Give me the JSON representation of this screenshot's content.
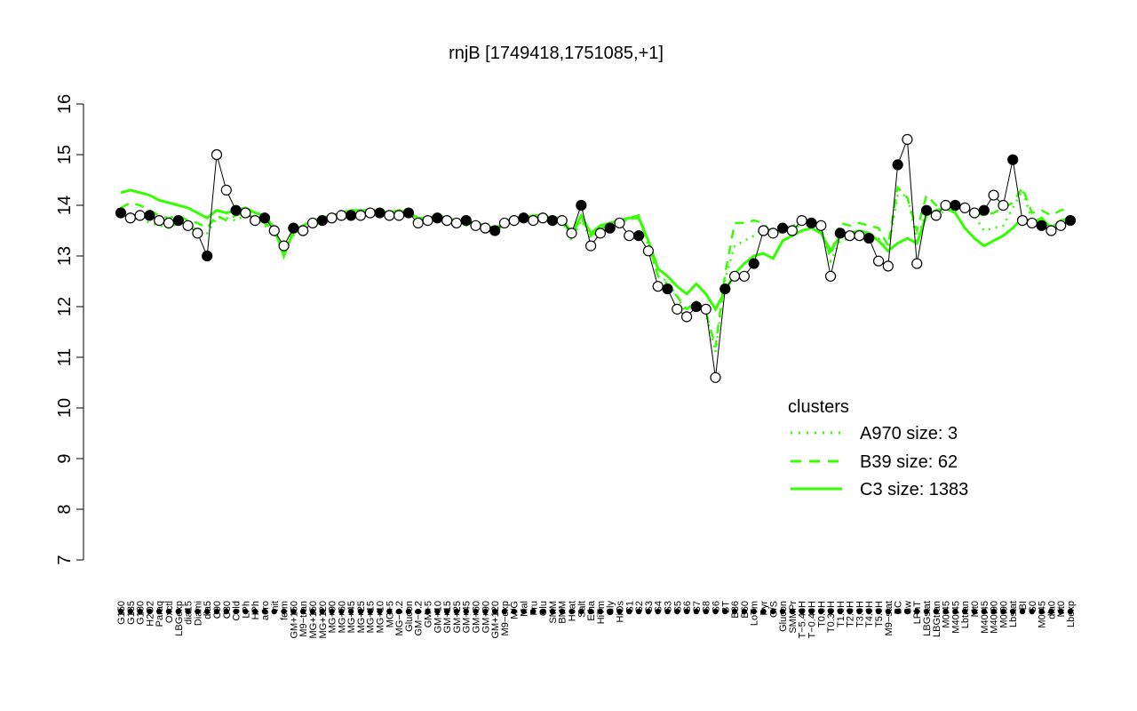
{
  "chart_data": {
    "type": "line",
    "title": "rnjB [1749418,1751085,+1]",
    "xlabel": "",
    "ylabel": "",
    "ylim": [
      7,
      16
    ],
    "y_ticks": [
      7,
      8,
      9,
      10,
      11,
      12,
      13,
      14,
      15,
      16
    ],
    "x_range": [
      1,
      100
    ],
    "grid": false,
    "x_ticks": [
      {
        "x": 1,
        "label": "G150"
      },
      {
        "x": 2,
        "label": "G135"
      },
      {
        "x": 3,
        "label": "G180"
      },
      {
        "x": 4,
        "label": "H2O2"
      },
      {
        "x": 5,
        "label": "Paraq"
      },
      {
        "x": 6,
        "label": "Oxctl"
      },
      {
        "x": 7,
        "label": "LBGexp"
      },
      {
        "x": 8,
        "label": "dia15"
      },
      {
        "x": 9,
        "label": "Diami"
      },
      {
        "x": 10,
        "label": "dia5"
      },
      {
        "x": 11,
        "label": "C90"
      },
      {
        "x": 12,
        "label": "C30"
      },
      {
        "x": 13,
        "label": "Cold"
      },
      {
        "x": 14,
        "label": "LPh"
      },
      {
        "x": 15,
        "label": "HPh"
      },
      {
        "x": 16,
        "label": "aero"
      },
      {
        "x": 17,
        "label": "nit"
      },
      {
        "x": 18,
        "label": "ferm"
      },
      {
        "x": 19,
        "label": "GM+150"
      },
      {
        "x": 20,
        "label": "M9−tran"
      },
      {
        "x": 21,
        "label": "MG+150"
      },
      {
        "x": 22,
        "label": "MG+120"
      },
      {
        "x": 23,
        "label": "MG+90"
      },
      {
        "x": 24,
        "label": "MG+60"
      },
      {
        "x": 25,
        "label": "MG+45"
      },
      {
        "x": 26,
        "label": "MG+25"
      },
      {
        "x": 27,
        "label": "MG+15"
      },
      {
        "x": 28,
        "label": "MG+10"
      },
      {
        "x": 29,
        "label": "MG+5"
      },
      {
        "x": 30,
        "label": "MG−0.2"
      },
      {
        "x": 31,
        "label": "Glucon"
      },
      {
        "x": 32,
        "label": "GM−0.2"
      },
      {
        "x": 33,
        "label": "GM+5"
      },
      {
        "x": 34,
        "label": "GM+10"
      },
      {
        "x": 35,
        "label": "GM+15"
      },
      {
        "x": 36,
        "label": "GM+25"
      },
      {
        "x": 37,
        "label": "GM+45"
      },
      {
        "x": 38,
        "label": "GM+60"
      },
      {
        "x": 39,
        "label": "GM+90"
      },
      {
        "x": 40,
        "label": "GM+120"
      },
      {
        "x": 41,
        "label": "M9−exp"
      },
      {
        "x": 42,
        "label": "M/G"
      },
      {
        "x": 43,
        "label": "Mal"
      },
      {
        "x": 44,
        "label": "Fru"
      },
      {
        "x": 45,
        "label": "Glu"
      },
      {
        "x": 46,
        "label": "SMM"
      },
      {
        "x": 47,
        "label": "BMM"
      },
      {
        "x": 48,
        "label": "Heat"
      },
      {
        "x": 49,
        "label": "Salt"
      },
      {
        "x": 50,
        "label": "Etha"
      },
      {
        "x": 51,
        "label": "HiTm"
      },
      {
        "x": 52,
        "label": "Gly"
      },
      {
        "x": 53,
        "label": "HiOs"
      },
      {
        "x": 54,
        "label": "S1"
      },
      {
        "x": 55,
        "label": "S2"
      },
      {
        "x": 56,
        "label": "S3"
      },
      {
        "x": 57,
        "label": "S4"
      },
      {
        "x": 58,
        "label": "S3"
      },
      {
        "x": 59,
        "label": "S5"
      },
      {
        "x": 60,
        "label": "S6"
      },
      {
        "x": 61,
        "label": "S7"
      },
      {
        "x": 62,
        "label": "S8"
      },
      {
        "x": 63,
        "label": "S6"
      },
      {
        "x": 64,
        "label": "BT"
      },
      {
        "x": 65,
        "label": "B36"
      },
      {
        "x": 66,
        "label": "B60"
      },
      {
        "x": 67,
        "label": "LoTm"
      },
      {
        "x": 68,
        "label": "Pyr"
      },
      {
        "x": 69,
        "label": "G/S"
      },
      {
        "x": 70,
        "label": "Glucon"
      },
      {
        "x": 71,
        "label": "SMMPr"
      },
      {
        "x": 72,
        "label": "T−5.40H"
      },
      {
        "x": 73,
        "label": "T−0.40H"
      },
      {
        "x": 74,
        "label": "T0.0H"
      },
      {
        "x": 75,
        "label": "T0.30H"
      },
      {
        "x": 76,
        "label": "T1.0H"
      },
      {
        "x": 77,
        "label": "T2.0H"
      },
      {
        "x": 78,
        "label": "T3.0H"
      },
      {
        "x": 79,
        "label": "T4.0H"
      },
      {
        "x": 80,
        "label": "T5.0H"
      },
      {
        "x": 81,
        "label": "M9−stat"
      },
      {
        "x": 82,
        "label": "BC"
      },
      {
        "x": 83,
        "label": "Sw"
      },
      {
        "x": 84,
        "label": "LPhT"
      },
      {
        "x": 85,
        "label": "LBGstat"
      },
      {
        "x": 86,
        "label": "LBGtran"
      },
      {
        "x": 87,
        "label": "M0t45"
      },
      {
        "x": 88,
        "label": "M40t45"
      },
      {
        "x": 89,
        "label": "Lbtran"
      },
      {
        "x": 90,
        "label": "Mt0"
      },
      {
        "x": 91,
        "label": "M40t45"
      },
      {
        "x": 92,
        "label": "M40t90"
      },
      {
        "x": 93,
        "label": "M0t90"
      },
      {
        "x": 94,
        "label": "Lbstat"
      },
      {
        "x": 95,
        "label": "BI"
      },
      {
        "x": 96,
        "label": "S0"
      },
      {
        "x": 97,
        "label": "M0t45"
      },
      {
        "x": 98,
        "label": "dia0"
      },
      {
        "x": 99,
        "label": "Mt0"
      },
      {
        "x": 100,
        "label": "Lbexp"
      }
    ],
    "series": [
      {
        "name": "A970 size: 3",
        "style": "dotted",
        "values": [
          13.85,
          13.75,
          13.75,
          13.65,
          13.6,
          13.55,
          13.65,
          13.55,
          13.55,
          13.45,
          13.75,
          13.75,
          13.7,
          13.8,
          13.7,
          13.6,
          13.45,
          13.1,
          13.4,
          13.55,
          13.6,
          13.65,
          13.75,
          13.75,
          13.8,
          13.8,
          13.8,
          13.85,
          13.8,
          13.8,
          13.8,
          13.6,
          13.7,
          13.7,
          13.7,
          13.6,
          13.6,
          13.6,
          13.5,
          13.5,
          13.6,
          13.7,
          13.7,
          13.7,
          13.75,
          13.7,
          13.7,
          13.3,
          13.7,
          13.35,
          13.55,
          13.6,
          13.7,
          13.7,
          13.8,
          13.2,
          12.6,
          12.5,
          12.2,
          11.85,
          12.1,
          11.85,
          11.1,
          12.55,
          13.2,
          13.3,
          13.4,
          13.55,
          13.4,
          13.55,
          13.6,
          13.65,
          13.7,
          13.55,
          12.9,
          13.3,
          13.35,
          13.4,
          13.45,
          13.35,
          13.1,
          14.2,
          14.2,
          13.3,
          13.9,
          13.8,
          13.9,
          13.9,
          13.85,
          13.8,
          13.5,
          13.55,
          13.6,
          13.95,
          14.3,
          13.7,
          13.7,
          13.6,
          13.7,
          13.75
        ]
      },
      {
        "name": "B39 size: 62",
        "style": "dashed",
        "values": [
          13.95,
          14.05,
          14.0,
          13.9,
          13.8,
          13.75,
          13.8,
          13.7,
          13.65,
          13.55,
          13.8,
          13.7,
          13.8,
          13.85,
          13.75,
          13.65,
          13.5,
          13.05,
          13.45,
          13.55,
          13.65,
          13.7,
          13.75,
          13.8,
          13.8,
          13.8,
          13.85,
          13.85,
          13.8,
          13.85,
          13.8,
          13.65,
          13.7,
          13.75,
          13.7,
          13.65,
          13.65,
          13.6,
          13.55,
          13.5,
          13.6,
          13.7,
          13.7,
          13.75,
          13.75,
          13.7,
          13.7,
          13.4,
          13.75,
          13.4,
          13.55,
          13.6,
          13.7,
          13.75,
          13.8,
          13.3,
          12.6,
          12.45,
          12.2,
          11.95,
          12.1,
          11.9,
          11.2,
          12.65,
          13.65,
          13.65,
          13.7,
          13.65,
          13.4,
          13.5,
          13.55,
          13.6,
          13.6,
          13.5,
          13.0,
          13.65,
          13.6,
          13.65,
          13.6,
          13.55,
          13.2,
          14.35,
          14.15,
          13.5,
          14.2,
          14.0,
          14.0,
          14.0,
          13.95,
          13.85,
          13.8,
          13.85,
          13.95,
          14.05,
          14.35,
          13.85,
          13.9,
          13.8,
          13.9,
          13.95
        ]
      },
      {
        "name": "C3 size: 1383",
        "style": "solid",
        "values": [
          14.25,
          14.3,
          14.25,
          14.2,
          14.1,
          14.05,
          14.0,
          13.95,
          13.85,
          13.75,
          13.9,
          13.85,
          13.9,
          13.95,
          13.85,
          13.8,
          13.55,
          13.0,
          13.5,
          13.6,
          13.7,
          13.75,
          13.8,
          13.85,
          13.9,
          13.9,
          13.9,
          13.9,
          13.85,
          13.9,
          13.85,
          13.75,
          13.75,
          13.8,
          13.75,
          13.7,
          13.7,
          13.65,
          13.6,
          13.55,
          13.65,
          13.75,
          13.75,
          13.8,
          13.8,
          13.75,
          13.75,
          13.45,
          13.8,
          13.45,
          13.6,
          13.65,
          13.7,
          13.75,
          13.75,
          13.3,
          12.75,
          12.6,
          12.4,
          12.25,
          12.45,
          12.25,
          11.95,
          12.3,
          12.65,
          12.85,
          13.0,
          13.05,
          12.95,
          13.3,
          13.4,
          13.5,
          13.55,
          13.45,
          13.1,
          13.4,
          13.45,
          13.5,
          13.45,
          13.3,
          13.1,
          13.25,
          13.35,
          13.25,
          13.8,
          13.9,
          13.95,
          13.85,
          13.55,
          13.35,
          13.2,
          13.3,
          13.4,
          13.55,
          13.75,
          13.65,
          13.75,
          13.55,
          13.7,
          13.75
        ]
      },
      {
        "name": "rnjB",
        "style": "points",
        "values": [
          13.85,
          13.75,
          13.8,
          13.8,
          13.7,
          13.65,
          13.7,
          13.6,
          13.45,
          13.0,
          15.0,
          14.3,
          13.9,
          13.85,
          13.7,
          13.75,
          13.5,
          13.2,
          13.55,
          13.5,
          13.65,
          13.7,
          13.75,
          13.8,
          13.8,
          13.8,
          13.85,
          13.85,
          13.8,
          13.8,
          13.85,
          13.65,
          13.7,
          13.75,
          13.7,
          13.65,
          13.7,
          13.6,
          13.55,
          13.5,
          13.65,
          13.7,
          13.75,
          13.7,
          13.75,
          13.7,
          13.7,
          13.45,
          14.0,
          13.2,
          13.45,
          13.55,
          13.65,
          13.4,
          13.4,
          13.1,
          12.4,
          12.35,
          11.95,
          11.8,
          12.0,
          11.95,
          10.6,
          12.35,
          12.6,
          12.6,
          12.85,
          13.5,
          13.45,
          13.55,
          13.5,
          13.7,
          13.65,
          13.6,
          12.6,
          13.45,
          13.4,
          13.4,
          13.35,
          12.9,
          12.8,
          14.8,
          15.3,
          12.85,
          13.9,
          13.8,
          14.0,
          14.0,
          13.95,
          13.85,
          13.9,
          14.2,
          14.0,
          14.9,
          13.7,
          13.65,
          13.6,
          13.5,
          13.6,
          13.7
        ]
      }
    ],
    "legend": {
      "title": "clusters",
      "position": "right",
      "entries": [
        {
          "label": "A970 size: 3",
          "style": "dotted"
        },
        {
          "label": "B39 size: 62",
          "style": "dashed"
        },
        {
          "label": "C3 size: 1383",
          "style": "solid"
        }
      ]
    },
    "colors": {
      "cluster_lines": "#33ff00",
      "points_fill": "#ffffff",
      "points_stroke": "#000000",
      "text": "#000000",
      "legend_text": "#33ff00"
    }
  }
}
